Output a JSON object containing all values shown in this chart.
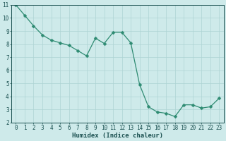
{
  "x": [
    0,
    1,
    2,
    3,
    4,
    5,
    6,
    7,
    8,
    9,
    10,
    11,
    12,
    13,
    14,
    15,
    16,
    17,
    18,
    19,
    20,
    21,
    22,
    23
  ],
  "y": [
    11.0,
    10.2,
    9.4,
    8.7,
    8.3,
    8.1,
    7.9,
    7.5,
    7.1,
    8.45,
    8.05,
    8.9,
    8.9,
    8.1,
    4.9,
    3.2,
    2.8,
    2.7,
    2.45,
    3.35,
    3.35,
    3.1,
    3.2,
    3.85
  ],
  "line_color": "#2e8b72",
  "marker": "D",
  "marker_size": 2.5,
  "bg_color": "#ceeaea",
  "grid_color": "#aed4d4",
  "xlabel": "Humidex (Indice chaleur)",
  "ylim": [
    2,
    11
  ],
  "xlim": [
    -0.5,
    23.5
  ],
  "yticks": [
    2,
    3,
    4,
    5,
    6,
    7,
    8,
    9,
    10,
    11
  ],
  "xticks": [
    0,
    1,
    2,
    3,
    4,
    5,
    6,
    7,
    8,
    9,
    10,
    11,
    12,
    13,
    14,
    15,
    16,
    17,
    18,
    19,
    20,
    21,
    22,
    23
  ],
  "tick_fontsize": 5.5,
  "xlabel_fontsize": 6.5,
  "tick_color": "#1a5050",
  "spine_color": "#1a5050",
  "linewidth": 0.9
}
